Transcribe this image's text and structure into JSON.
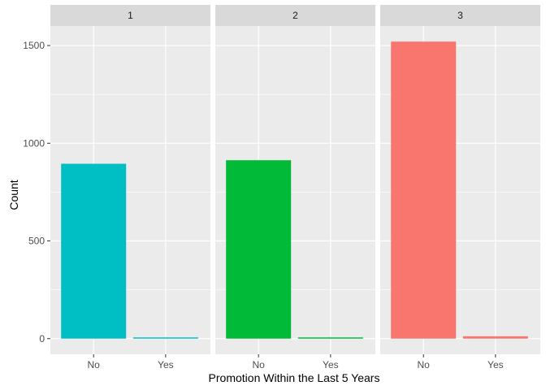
{
  "chart_data": {
    "type": "bar",
    "facets": [
      {
        "label": "1",
        "categories": [
          "No",
          "Yes"
        ],
        "values": [
          895,
          4
        ],
        "color": "#00BFC4"
      },
      {
        "label": "2",
        "categories": [
          "No",
          "Yes"
        ],
        "values": [
          913,
          3
        ],
        "color": "#00BA38"
      },
      {
        "label": "3",
        "categories": [
          "No",
          "Yes"
        ],
        "values": [
          1520,
          12
        ],
        "color": "#F8766D"
      }
    ],
    "xlabel": "Promotion Within the Last 5 Years",
    "ylabel": "Count",
    "ylim": [
      -80,
      1600
    ],
    "yticks": [
      0,
      500,
      1000,
      1500
    ],
    "grid": true,
    "panel_background": "#EBEBEB",
    "strip_background": "#D9D9D9",
    "grid_color": "#FFFFFF"
  }
}
